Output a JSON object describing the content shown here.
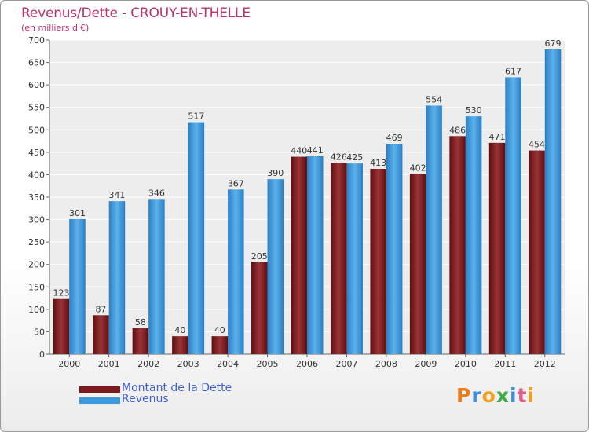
{
  "chart_data": {
    "type": "bar",
    "title": "Revenus/Dette - CROUY-EN-THELLE",
    "subtitle": "(en milliers d'€)",
    "categories": [
      "2000",
      "2001",
      "2002",
      "2003",
      "2004",
      "2005",
      "2006",
      "2007",
      "2008",
      "2009",
      "2010",
      "2011",
      "2012"
    ],
    "series": [
      {
        "name": "Montant de la Dette",
        "color": "#7a1a1f",
        "values": [
          123,
          87,
          58,
          40,
          40,
          205,
          440,
          426,
          413,
          402,
          486,
          471,
          454
        ]
      },
      {
        "name": "Revenus",
        "color": "#3d98dc",
        "values": [
          301,
          341,
          346,
          517,
          367,
          390,
          441,
          425,
          469,
          554,
          530,
          617,
          679
        ]
      }
    ],
    "yticks": [
      0,
      50,
      100,
      150,
      200,
      250,
      300,
      350,
      400,
      450,
      500,
      550,
      600,
      650,
      700
    ],
    "ylim": [
      0,
      700
    ],
    "grid": true,
    "legend_position": "bottom-left"
  },
  "legend": {
    "items": [
      {
        "label": "Montant de la Dette",
        "color": "#7a1a1f"
      },
      {
        "label": "Revenus",
        "color": "#3d98dc"
      }
    ]
  },
  "logo": {
    "letters": [
      "P",
      "r",
      "o",
      "x",
      "i",
      "t",
      "i"
    ],
    "colors": [
      "#e87d1e",
      "#3f8fd8",
      "#f0a020",
      "#3fae49",
      "#3f8fd8",
      "#e05a8a",
      "#f0a020"
    ]
  }
}
